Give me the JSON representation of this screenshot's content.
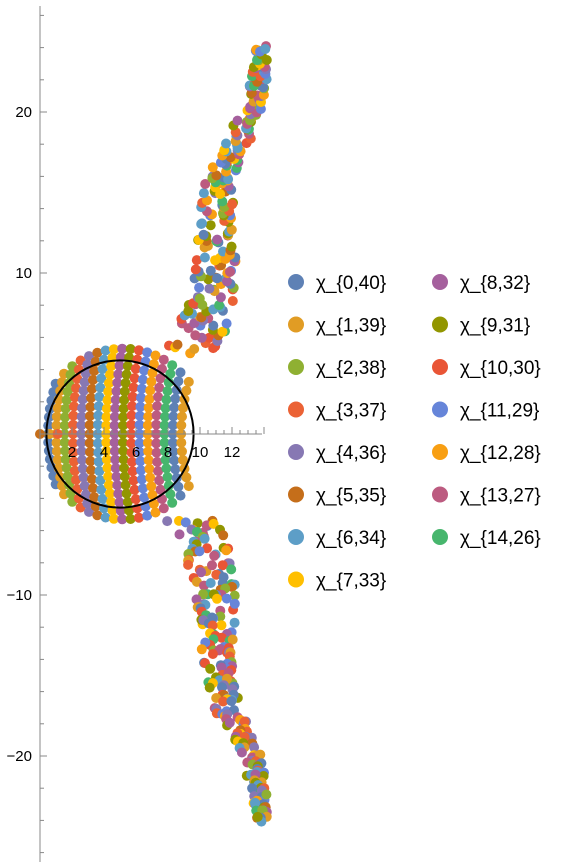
{
  "chart_data": {
    "type": "scatter",
    "title": "",
    "xlabel": "",
    "ylabel": "",
    "xlim": [
      -0.3,
      14.4
    ],
    "ylim": [
      -26.5,
      26.5
    ],
    "x_ticks": [
      2,
      4,
      6,
      8,
      10,
      12
    ],
    "y_ticks": [
      -20,
      -10,
      10,
      20
    ],
    "x_tick_labels": [
      "2",
      "4",
      "6",
      "8",
      "10",
      "12"
    ],
    "y_tick_labels": [
      "−20",
      "−10",
      "10",
      "20"
    ],
    "grid": false,
    "legend_position": "right",
    "circle": {
      "center": [
        5,
        0
      ],
      "radius": 4.6,
      "color": "#000000"
    },
    "series": [
      {
        "name": "χ_{0,40}",
        "color": "#5E81B5"
      },
      {
        "name": "χ_{1,39}",
        "color": "#E19C24"
      },
      {
        "name": "χ_{2,38}",
        "color": "#8FB032"
      },
      {
        "name": "χ_{3,37}",
        "color": "#EB6235"
      },
      {
        "name": "χ_{4,36}",
        "color": "#8778B3"
      },
      {
        "name": "χ_{5,35}",
        "color": "#C56E1A"
      },
      {
        "name": "χ_{6,34}",
        "color": "#5D9EC7"
      },
      {
        "name": "χ_{7,33}",
        "color": "#FFBF00"
      },
      {
        "name": "χ_{8,32}",
        "color": "#A5609D"
      },
      {
        "name": "χ_{9,31}",
        "color": "#929600"
      },
      {
        "name": "χ_{10,30}",
        "color": "#E95536"
      },
      {
        "name": "χ_{11,29}",
        "color": "#6685D9"
      },
      {
        "name": "χ_{12,28}",
        "color": "#F89F13"
      },
      {
        "name": "χ_{13,27}",
        "color": "#BC5B80"
      },
      {
        "name": "χ_{14,26}",
        "color": "#47B66D"
      }
    ]
  }
}
